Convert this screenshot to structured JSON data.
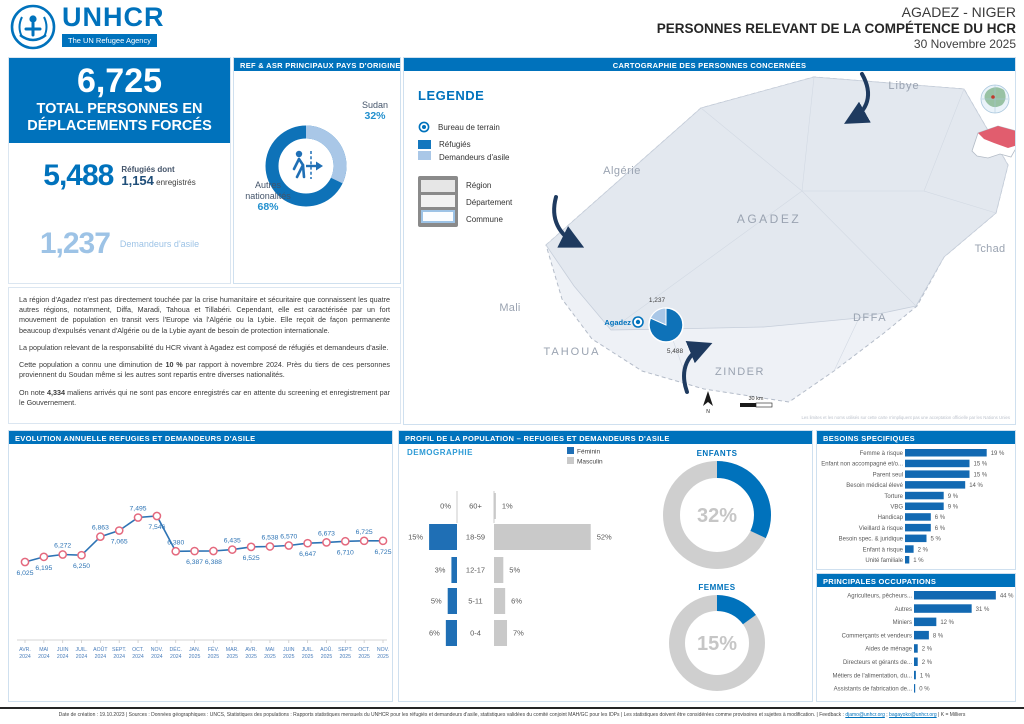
{
  "colors": {
    "brand": "#0072BC",
    "light_blue": "#9DC3E6",
    "pie_light": "#A9C7E7",
    "pie_dark": "#0E72B8",
    "bar_blue": "#1269B2",
    "navy_arrow": "#1E3A5F",
    "line_blue": "#2E74B5",
    "marker_stroke": "#E4697E",
    "female": "#1F6FB5",
    "male": "#C9C9C9",
    "donut_gray": "#CFCFCF"
  },
  "header": {
    "logo_text": "UNHCR",
    "logo_subtitle": "The UN Refugee Agency",
    "region": "AGADEZ - NIGER",
    "title": "PERSONNES RELEVANT DE LA COMPÉTENCE DU HCR",
    "date": "30 Novembre 2025"
  },
  "summary": {
    "total": "6,725",
    "total_label": "TOTAL PERSONNES EN DÉPLACEMENTS FORCÉS",
    "refugees": "5,488",
    "refugees_label1": "Réfugiés dont",
    "refugees_registered": "1,154",
    "refugees_label2": "enregistrés",
    "asylum": "1,237",
    "asylum_label": "Demandeurs d'asile"
  },
  "origin_panel": {
    "title": "REF & ASR PRINCIPAUX PAYS D'ORIGINE"
  },
  "map": {
    "panel_title": "CARTOGRAPHIE DES PERSONNES CONCERNÉES",
    "legend_title": "LEGENDE",
    "legend_items": {
      "office": "Bureau de terrain",
      "refugees": "Réfugiés",
      "asylum": "Demandeurs d'asile",
      "region": "Région",
      "department": "Département",
      "commune": "Commune"
    },
    "place_labels": [
      "Libye",
      "Algérie",
      "AGADEZ",
      "Tchad",
      "Mali",
      "TAHOUA",
      "ZINDER",
      "DFFA"
    ],
    "marker_label": "Agadez",
    "scale_label": "30 km",
    "north_label": "N",
    "disclaimer": "Les limites et les noms utilisés sur cette carte n'impliquent pas une acceptation officielle par les Nations Unies"
  },
  "narrative": {
    "p1": "La région d'Agadez n'est pas directement touchée par la crise humanitaire et sécuritaire que connaissent les quatre autres régions, notamment, Diffa, Maradi, Tahoua et Tillabéri. Cependant, elle est caractérisée par un fort mouvement de population en transit vers l'Europe via l'Algérie ou la Lybie. Elle reçoit de façon permanente beaucoup d'expulsés venant d'Algérie ou de la Lybie ayant de besoin de protection internationale.",
    "p2": "La population relevant de la responsabilité du HCR vivant à Agadez est composé de réfugiés et demandeurs d'asile.",
    "p3": [
      "Cette population a connu une diminution de ",
      "10 %",
      " par rapport à novembre 2024. Près du tiers de ces personnes proviennent du Soudan même si les autres sont repartis entre diverses nationalités."
    ],
    "p4": [
      "On note ",
      "4,334",
      " maliens arrivés qui ne sont pas encore enregistrés car en attente du screening et enregistrement par le Gouvernement."
    ]
  },
  "sections": {
    "evolution": "EVOLUTION ANNUELLE REFUGIES ET DEMANDEURS D'ASILE",
    "profile": "PROFIL DE LA POPULATION – REFUGIES ET DEMANDEURS D'ASILE",
    "demography": "DEMOGRAPHIE",
    "besoins": "BESOINS SPECIFIQUES",
    "occupations": "PRINCIPALES OCCUPATIONS"
  },
  "footer": {
    "text_before": "Date de création : 19.10.2023 | Sources : Données géographiques : UNCS, Statistiques des populations : Rapports statistiques mensuels du UNHCR pour les réfugiés et demandeurs d'asile, statistiques validées du comité conjoint MAH/GC pour les IDPs | Les statistiques doivent être considérées comme provisoires et sujettes à modification. | Feedback : ",
    "email1": "djamo@unhcr.org",
    "separator": " ; ",
    "email2": "bagayoko@unhcr.org",
    "text_after": " | K = Milliers"
  },
  "chart_data": [
    {
      "type": "line",
      "title": "EVOLUTION ANNUELLE REFUGIES ET DEMANDEURS D'ASILE",
      "x": [
        "AVR. 2024",
        "MAI 2024",
        "JUIN 2024",
        "JUIL. 2024",
        "AOÛT 2024",
        "SEPT. 2024",
        "OCT. 2024",
        "NOV. 2024",
        "DÉC. 2024",
        "JAN. 2025",
        "FÉV. 2025",
        "MAR. 2025",
        "AVR. 2025",
        "MAI 2025",
        "JUIN 2025",
        "JUIL. 2025",
        "AOÛ. 2025",
        "SEPT. 2025",
        "OCT. 2025",
        "NOV. 2025"
      ],
      "values": [
        6025,
        6195,
        6272,
        6250,
        6863,
        7065,
        7495,
        7546,
        6380,
        6387,
        6388,
        6435,
        6525,
        6538,
        6570,
        6647,
        6673,
        6710,
        6725,
        6725
      ],
      "labels": [
        "6,025",
        "6,195",
        "6,272",
        "6,250",
        "6,863",
        "7,065",
        "7,495",
        "7,546",
        "6,380",
        "6,387",
        "6,388",
        "6,435",
        "6,525",
        "6,538",
        "6,570",
        "6,647",
        "6,673",
        "6,710",
        "6,725",
        "6,725"
      ],
      "label_pos": [
        "b",
        "b",
        "a",
        "b",
        "a",
        "b",
        "a",
        "b",
        "a",
        "b",
        "b",
        "a",
        "b",
        "a",
        "a",
        "b",
        "a",
        "b",
        "a",
        "b"
      ],
      "ylim": [
        6000,
        7600
      ],
      "grid": false,
      "legend_position": "none"
    },
    {
      "type": "bar",
      "title": "DEMOGRAPHIE",
      "orientation": "population-pyramid",
      "categories": [
        "60+",
        "18-59",
        "12-17",
        "5-11",
        "0-4"
      ],
      "series": [
        {
          "name": "Féminin",
          "values": [
            0,
            15,
            3,
            5,
            6
          ],
          "labels": [
            "0%",
            "15%",
            "3%",
            "5%",
            "6%"
          ],
          "color": "#1F6FB5"
        },
        {
          "name": "Masculin",
          "values": [
            1,
            52,
            5,
            6,
            7
          ],
          "labels": [
            "1%",
            "52%",
            "5%",
            "6%",
            "7%"
          ],
          "color": "#C9C9C9"
        }
      ],
      "unit": "%"
    },
    {
      "type": "pie",
      "title": "ENFANTS",
      "value": 32,
      "label": "32%",
      "colors": [
        "#0072BC",
        "#CFCFCF"
      ]
    },
    {
      "type": "pie",
      "title": "FEMMES",
      "value": 15,
      "label": "15%",
      "colors": [
        "#0072BC",
        "#CFCFCF"
      ]
    },
    {
      "type": "bar",
      "title": "BESOINS SPECIFIQUES",
      "categories": [
        "Femme à risque",
        "Enfant non accompagné et/o...",
        "Parent seul",
        "Besoin médical élevé",
        "Torture",
        "VBG",
        "Handicap",
        "Vieillard à risque",
        "Besoin spec. & juridique",
        "Enfant à risque",
        "Unité familiale"
      ],
      "values": [
        19,
        15,
        15,
        14,
        9,
        9,
        6,
        6,
        5,
        2,
        1
      ],
      "value_labels": [
        "19 %",
        "15 %",
        "15 %",
        "14 %",
        "9 %",
        "9 %",
        "6 %",
        "6 %",
        "5 %",
        "2 %",
        "1 %"
      ],
      "unit": "%"
    },
    {
      "type": "bar",
      "title": "PRINCIPALES OCCUPATIONS",
      "categories": [
        "Agriculteurs, pêcheurs...",
        "Autres",
        "Miniers",
        "Commerçants et vendeurs",
        "Aides de ménage",
        "Directeurs et gérants de...",
        "Métiers de l'alimentation, du...",
        "Assistants de fabrication de..."
      ],
      "values": [
        44,
        31,
        12,
        8,
        2,
        2,
        1,
        0
      ],
      "value_labels": [
        "44 %",
        "31 %",
        "12 %",
        "8 %",
        "2 %",
        "2 %",
        "1 %",
        "0 %"
      ],
      "unit": "%"
    },
    {
      "type": "pie",
      "title": "REF & ASR PRINCIPAUX PAYS D'ORIGINE",
      "slices": [
        {
          "label": "Sudan",
          "pct": 32,
          "pct_label": "32%",
          "color": "#A9C7E7"
        },
        {
          "label": "Autres nationalités",
          "pct": 68,
          "pct_label": "68%",
          "color": "#0E72B8"
        }
      ]
    },
    {
      "type": "pie",
      "title": "Agadez - personnes concernées (carte)",
      "slices": [
        {
          "label": "Réfugiés",
          "value": 5488,
          "value_label": "5,488",
          "color": "#0E72B8"
        },
        {
          "label": "Demandeurs d'asile",
          "value": 1237,
          "value_label": "1,237",
          "color": "#A9C7E7"
        }
      ]
    }
  ]
}
